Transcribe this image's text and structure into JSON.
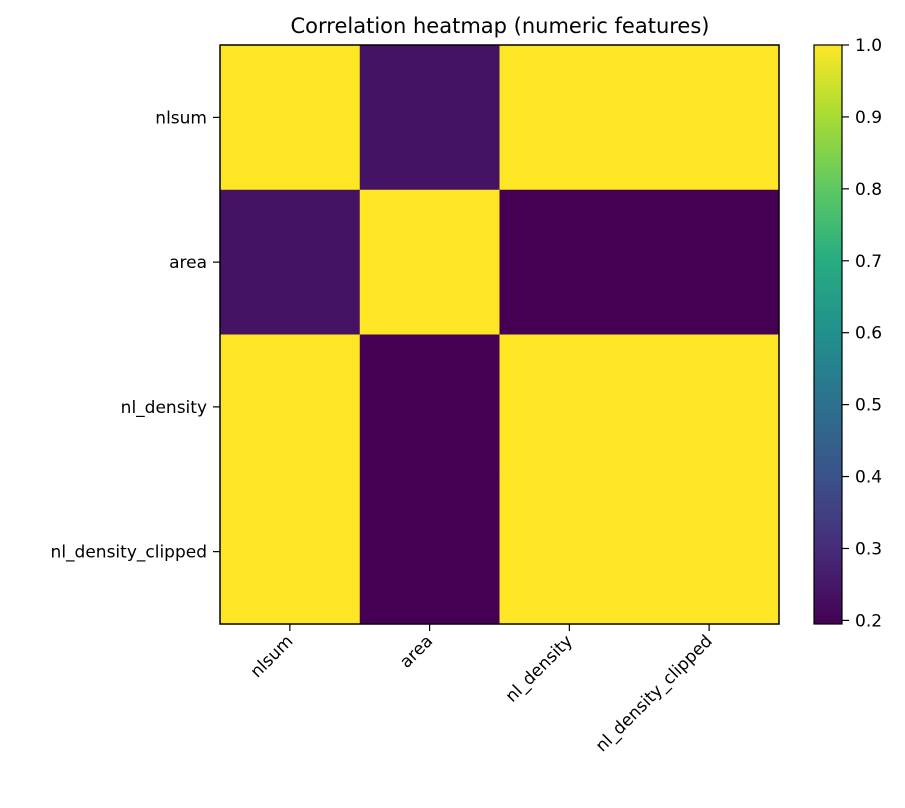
{
  "chart_data": {
    "type": "heatmap",
    "title": "Correlation heatmap (numeric features)",
    "xlabel": "",
    "ylabel": "",
    "x_labels": [
      "nlsum",
      "area",
      "nl_density",
      "nl_density_clipped"
    ],
    "y_labels": [
      "nlsum",
      "area",
      "nl_density",
      "nl_density_clipped"
    ],
    "values": [
      [
        1.0,
        0.24,
        1.0,
        1.0
      ],
      [
        0.24,
        1.0,
        0.195,
        0.195
      ],
      [
        1.0,
        0.195,
        1.0,
        1.0
      ],
      [
        1.0,
        0.195,
        1.0,
        1.0
      ]
    ],
    "colorbar": {
      "min": 0.195,
      "max": 1.0,
      "ticks": [
        0.2,
        0.3,
        0.4,
        0.5,
        0.6,
        0.7,
        0.8,
        0.9,
        1.0
      ],
      "tick_labels": [
        "0.2",
        "0.3",
        "0.4",
        "0.5",
        "0.6",
        "0.7",
        "0.8",
        "0.9",
        "1.0"
      ]
    },
    "colormap": "viridis",
    "grid": false
  }
}
